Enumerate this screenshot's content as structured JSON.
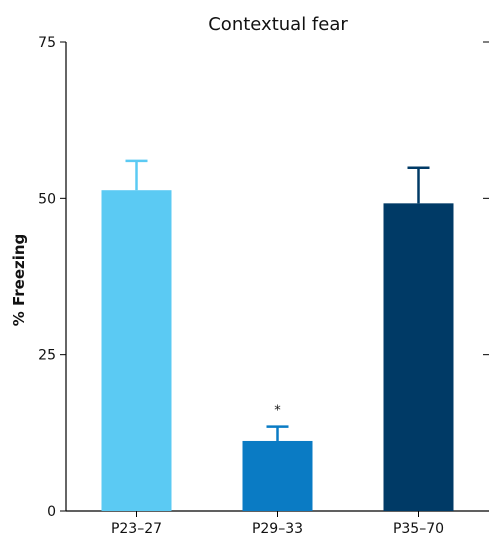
{
  "chart_data": {
    "type": "bar",
    "title": "Contextual fear",
    "xlabel": "",
    "ylabel": "% Freezing",
    "ylim": [
      0,
      75
    ],
    "yticks": [
      0,
      25,
      50,
      75
    ],
    "categories": [
      "P23–27",
      "P29–33",
      "P35–70"
    ],
    "values": [
      51.3,
      11.2,
      49.2
    ],
    "errors": [
      4.7,
      2.3,
      5.7
    ],
    "colors": [
      "#5bcaf3",
      "#0a7bc4",
      "#003a66"
    ],
    "annotations": [
      "",
      "*",
      ""
    ],
    "grid": false,
    "legend": "none"
  }
}
